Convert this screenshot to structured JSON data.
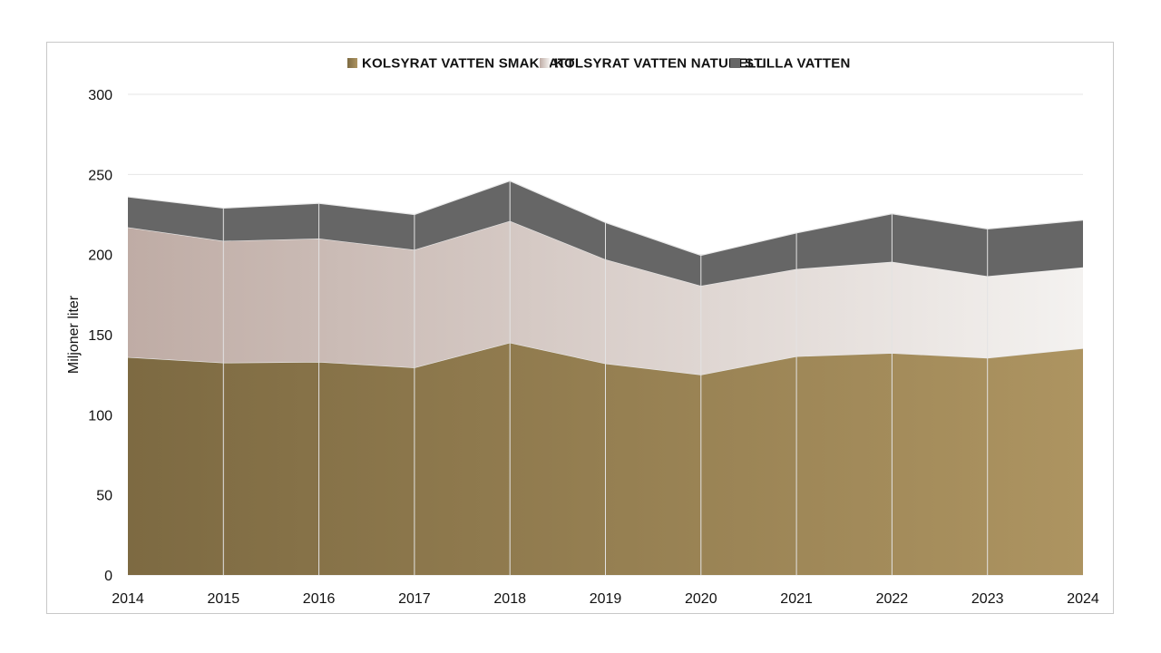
{
  "chart_data": {
    "type": "area",
    "stacked": true,
    "title": "",
    "xlabel": "",
    "ylabel": "Miljoner liter",
    "x": [
      "2014",
      "2015",
      "2016",
      "2017",
      "2018",
      "2019",
      "2020",
      "2021",
      "2022",
      "2023",
      "2024"
    ],
    "ylim": [
      0,
      300
    ],
    "yticks": [
      "0",
      "50",
      "100",
      "150",
      "200",
      "250",
      "300"
    ],
    "legend_position": "top",
    "grid": true,
    "series": [
      {
        "name": "KOLSYRAT VATTEN SMAKSATT",
        "values": [
          136,
          132.5,
          133,
          129.5,
          145,
          132,
          125,
          136.5,
          138.5,
          135.5,
          141.5
        ],
        "color_start": "#7d6a42",
        "color_end": "#ad9461"
      },
      {
        "name": "KOLSYRAT VATTEN NATURELL",
        "values": [
          81,
          76,
          77,
          73.5,
          76,
          65,
          55.5,
          54.5,
          57,
          51,
          50.5
        ],
        "color_start": "#bfaca5",
        "color_end": "#f4f2f0"
      },
      {
        "name": "STILLA VATTEN",
        "values": [
          19,
          20.5,
          22,
          22,
          25,
          23,
          19,
          22.5,
          30,
          29.5,
          29.5
        ],
        "color_start": "#666666",
        "color_end": "#666666"
      }
    ]
  }
}
